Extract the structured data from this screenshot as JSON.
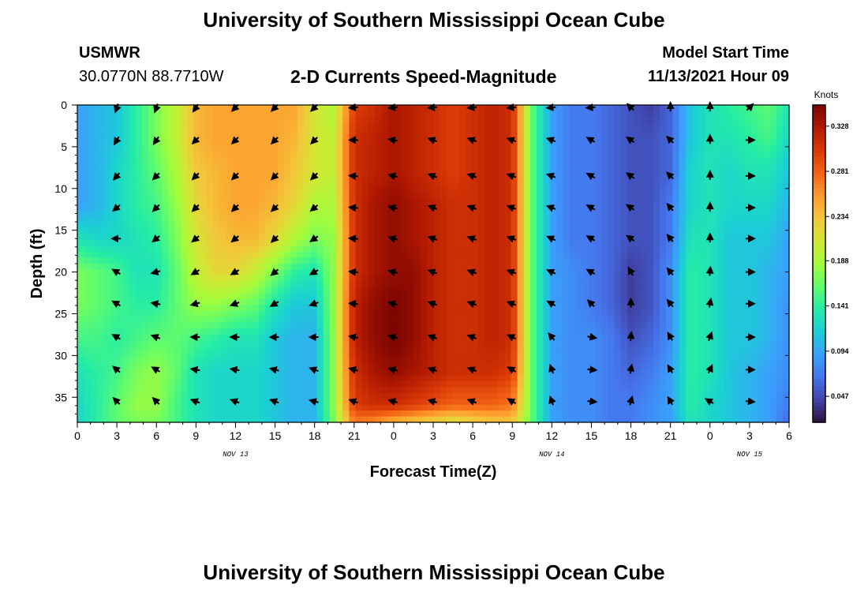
{
  "page": {
    "title_top": "University of Southern Mississippi Ocean Cube",
    "title_bottom": "University of Southern Mississippi Ocean Cube",
    "station": "USMWR",
    "coordinates": "30.0770N  88.7710W",
    "subtitle": "2-D Currents Speed-Magnitude",
    "model_start_label": "Model Start Time",
    "model_start_value": "11/13/2021 Hour 09"
  },
  "colors": {
    "colormap": [
      "#30123b",
      "#4145ab",
      "#4675ed",
      "#39a2fc",
      "#1bcfd4",
      "#24eca6",
      "#61fc6c",
      "#a4fc3b",
      "#d1e834",
      "#f3c63a",
      "#fe9b2d",
      "#f36315",
      "#d93806",
      "#b11901",
      "#7a0402"
    ],
    "arrow": "#000000",
    "frame": "#000000"
  },
  "chart_data": {
    "type": "heatmap",
    "xlabel": "Forecast Time(Z)",
    "ylabel": "Depth (ft)",
    "x_ticks": [
      "0",
      "3",
      "6",
      "9",
      "12",
      "15",
      "18",
      "21",
      "0",
      "3",
      "6",
      "9",
      "12",
      "15",
      "18",
      "21",
      "0",
      "3",
      "6"
    ],
    "x_range_hours": [
      0,
      54
    ],
    "y_ticks": [
      "0",
      "5",
      "10",
      "15",
      "20",
      "25",
      "30",
      "35"
    ],
    "y_range_ft": [
      0,
      38
    ],
    "date_labels": [
      {
        "text": "NOV 13",
        "hour": 12
      },
      {
        "text": "NOV 14",
        "hour": 36
      },
      {
        "text": "NOV 15",
        "hour": 51
      }
    ],
    "colorbar": {
      "title": "Knots",
      "range": [
        0.02,
        0.35
      ],
      "ticks": [
        "0.047",
        "0.094",
        "0.141",
        "0.188",
        "0.234",
        "0.281",
        "0.328"
      ]
    },
    "speed_grid": {
      "hours": [
        0,
        1.5,
        3,
        4.5,
        6,
        7.5,
        9,
        10.5,
        12,
        13.5,
        15,
        16.5,
        18,
        19.5,
        21,
        22.5,
        24,
        25.5,
        27,
        28.5,
        30,
        31.5,
        33,
        34.5,
        36,
        37.5,
        39,
        40.5,
        42,
        43.5,
        45,
        46.5,
        48,
        49.5,
        51,
        52.5,
        54
      ],
      "depths": [
        0,
        4,
        8,
        12,
        16,
        20,
        24,
        28,
        32,
        36,
        38
      ],
      "values": [
        [
          0.09,
          0.1,
          0.11,
          0.14,
          0.17,
          0.2,
          0.24,
          0.25,
          0.25,
          0.25,
          0.25,
          0.25,
          0.21,
          0.19,
          0.3,
          0.31,
          0.33,
          0.32,
          0.31,
          0.3,
          0.31,
          0.32,
          0.31,
          0.16,
          0.09,
          0.07,
          0.07,
          0.06,
          0.05,
          0.04,
          0.06,
          0.11,
          0.13,
          0.14,
          0.15,
          0.16,
          0.13
        ],
        [
          0.09,
          0.1,
          0.11,
          0.14,
          0.17,
          0.2,
          0.24,
          0.25,
          0.25,
          0.25,
          0.25,
          0.24,
          0.21,
          0.2,
          0.31,
          0.32,
          0.33,
          0.32,
          0.31,
          0.3,
          0.31,
          0.32,
          0.31,
          0.16,
          0.09,
          0.07,
          0.07,
          0.06,
          0.05,
          0.05,
          0.06,
          0.11,
          0.13,
          0.13,
          0.14,
          0.15,
          0.12
        ],
        [
          0.09,
          0.1,
          0.12,
          0.14,
          0.16,
          0.19,
          0.23,
          0.24,
          0.25,
          0.25,
          0.25,
          0.23,
          0.21,
          0.2,
          0.31,
          0.32,
          0.33,
          0.32,
          0.31,
          0.3,
          0.31,
          0.32,
          0.31,
          0.16,
          0.09,
          0.07,
          0.07,
          0.06,
          0.05,
          0.05,
          0.06,
          0.12,
          0.13,
          0.12,
          0.13,
          0.13,
          0.11
        ],
        [
          0.09,
          0.1,
          0.12,
          0.14,
          0.15,
          0.18,
          0.22,
          0.24,
          0.25,
          0.25,
          0.24,
          0.22,
          0.19,
          0.19,
          0.31,
          0.33,
          0.34,
          0.33,
          0.32,
          0.31,
          0.31,
          0.32,
          0.31,
          0.16,
          0.09,
          0.07,
          0.07,
          0.06,
          0.05,
          0.05,
          0.07,
          0.12,
          0.13,
          0.12,
          0.12,
          0.12,
          0.1
        ],
        [
          0.13,
          0.12,
          0.12,
          0.13,
          0.14,
          0.17,
          0.21,
          0.23,
          0.24,
          0.24,
          0.22,
          0.19,
          0.17,
          0.18,
          0.31,
          0.33,
          0.34,
          0.33,
          0.32,
          0.31,
          0.31,
          0.32,
          0.31,
          0.16,
          0.09,
          0.07,
          0.07,
          0.06,
          0.05,
          0.05,
          0.07,
          0.13,
          0.13,
          0.11,
          0.11,
          0.11,
          0.09
        ],
        [
          0.17,
          0.16,
          0.15,
          0.13,
          0.13,
          0.16,
          0.2,
          0.22,
          0.22,
          0.2,
          0.17,
          0.14,
          0.13,
          0.18,
          0.31,
          0.33,
          0.34,
          0.34,
          0.32,
          0.31,
          0.31,
          0.32,
          0.31,
          0.16,
          0.09,
          0.08,
          0.07,
          0.06,
          0.04,
          0.05,
          0.08,
          0.14,
          0.13,
          0.11,
          0.11,
          0.1,
          0.09
        ],
        [
          0.17,
          0.16,
          0.15,
          0.14,
          0.14,
          0.16,
          0.18,
          0.18,
          0.17,
          0.16,
          0.13,
          0.11,
          0.11,
          0.18,
          0.32,
          0.34,
          0.35,
          0.34,
          0.32,
          0.31,
          0.31,
          0.32,
          0.31,
          0.16,
          0.09,
          0.08,
          0.07,
          0.06,
          0.04,
          0.05,
          0.08,
          0.14,
          0.13,
          0.11,
          0.11,
          0.1,
          0.08
        ],
        [
          0.15,
          0.15,
          0.14,
          0.15,
          0.16,
          0.16,
          0.15,
          0.14,
          0.13,
          0.13,
          0.11,
          0.1,
          0.1,
          0.18,
          0.32,
          0.34,
          0.35,
          0.34,
          0.32,
          0.31,
          0.31,
          0.32,
          0.31,
          0.16,
          0.09,
          0.08,
          0.08,
          0.07,
          0.05,
          0.06,
          0.08,
          0.14,
          0.13,
          0.11,
          0.11,
          0.1,
          0.08
        ],
        [
          0.13,
          0.14,
          0.15,
          0.17,
          0.18,
          0.16,
          0.13,
          0.12,
          0.12,
          0.12,
          0.11,
          0.1,
          0.1,
          0.18,
          0.31,
          0.33,
          0.34,
          0.33,
          0.32,
          0.31,
          0.31,
          0.31,
          0.3,
          0.16,
          0.09,
          0.08,
          0.08,
          0.07,
          0.06,
          0.07,
          0.09,
          0.14,
          0.13,
          0.11,
          0.1,
          0.09,
          0.08
        ],
        [
          0.12,
          0.14,
          0.16,
          0.18,
          0.18,
          0.15,
          0.13,
          0.12,
          0.12,
          0.12,
          0.11,
          0.1,
          0.1,
          0.18,
          0.3,
          0.31,
          0.31,
          0.3,
          0.29,
          0.28,
          0.28,
          0.28,
          0.27,
          0.16,
          0.09,
          0.08,
          0.08,
          0.07,
          0.07,
          0.08,
          0.09,
          0.14,
          0.12,
          0.11,
          0.1,
          0.09,
          0.07
        ],
        [
          0.12,
          0.14,
          0.16,
          0.17,
          0.17,
          0.15,
          0.13,
          0.12,
          0.12,
          0.12,
          0.11,
          0.1,
          0.1,
          0.17,
          0.27,
          0.26,
          0.24,
          0.23,
          0.22,
          0.21,
          0.22,
          0.23,
          0.23,
          0.16,
          0.09,
          0.08,
          0.08,
          0.07,
          0.07,
          0.08,
          0.09,
          0.13,
          0.12,
          0.11,
          0.1,
          0.09,
          0.06
        ]
      ]
    },
    "arrows": {
      "hours": [
        3,
        6,
        9,
        12,
        15,
        18,
        21,
        24,
        27,
        30,
        33,
        36,
        39,
        42,
        45,
        48,
        51
      ],
      "depths": [
        0.3,
        4.2,
        8.5,
        12.3,
        16,
        20,
        23.8,
        27.8,
        31.7,
        35.5
      ],
      "direction_deg": [
        [
          200,
          200,
          215,
          225,
          225,
          225,
          265,
          265,
          265,
          265,
          265,
          265,
          265,
          315,
          0,
          0,
          45
        ],
        [
          210,
          215,
          225,
          225,
          225,
          225,
          270,
          280,
          290,
          290,
          290,
          290,
          300,
          305,
          315,
          0,
          90
        ],
        [
          220,
          225,
          225,
          225,
          225,
          225,
          275,
          285,
          290,
          290,
          290,
          290,
          300,
          305,
          315,
          0,
          90
        ],
        [
          230,
          225,
          225,
          225,
          225,
          230,
          275,
          285,
          290,
          290,
          290,
          290,
          300,
          305,
          320,
          0,
          90
        ],
        [
          270,
          230,
          230,
          230,
          225,
          235,
          275,
          285,
          290,
          290,
          290,
          295,
          300,
          305,
          320,
          0,
          90
        ],
        [
          300,
          255,
          240,
          240,
          230,
          240,
          275,
          285,
          290,
          290,
          290,
          295,
          300,
          330,
          320,
          5,
          90
        ],
        [
          300,
          280,
          255,
          250,
          240,
          250,
          275,
          285,
          290,
          290,
          290,
          300,
          315,
          360,
          320,
          10,
          90
        ],
        [
          300,
          290,
          270,
          270,
          270,
          270,
          280,
          285,
          290,
          290,
          295,
          320,
          100,
          5,
          330,
          20,
          90
        ],
        [
          310,
          300,
          280,
          280,
          285,
          290,
          285,
          285,
          290,
          290,
          300,
          340,
          95,
          10,
          330,
          25,
          90
        ],
        [
          315,
          315,
          290,
          290,
          290,
          285,
          290,
          285,
          285,
          290,
          300,
          340,
          95,
          15,
          330,
          300,
          95
        ]
      ]
    }
  }
}
